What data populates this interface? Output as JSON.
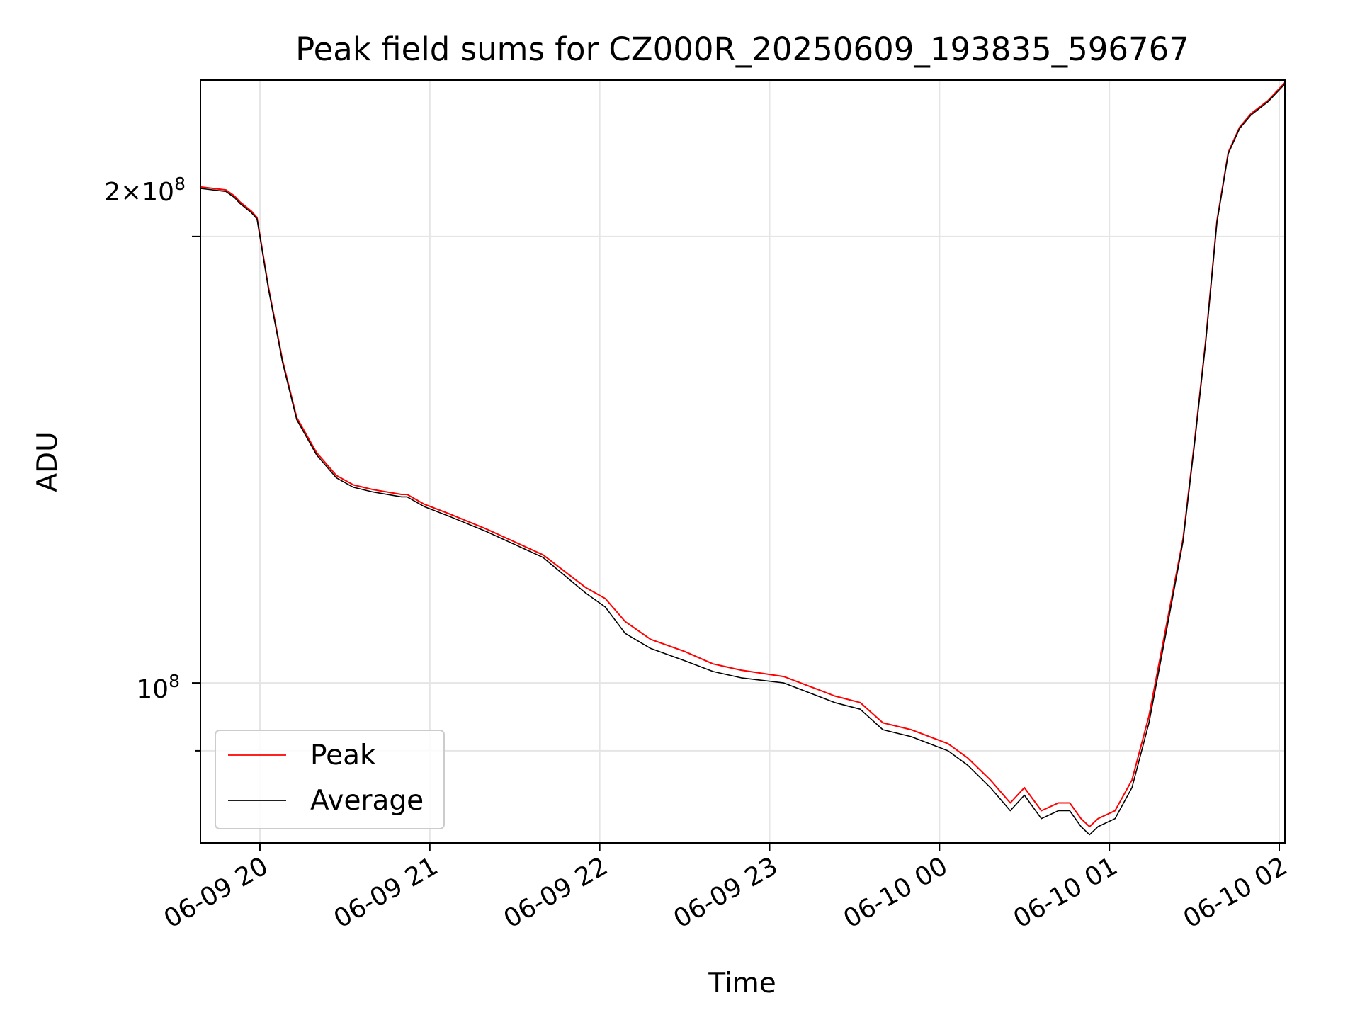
{
  "chart_data": {
    "type": "line",
    "title": "Peak field sums for CZ000R_20250609_193835_596767",
    "xlabel": "Time",
    "ylabel": "ADU",
    "x_ticks": [
      "06-09 20",
      "06-09 21",
      "06-09 22",
      "06-09 23",
      "06-10 00",
      "06-10 01",
      "06-10 02"
    ],
    "y_tick_labels": {
      "major": "10",
      "major_exp": "8",
      "two": "2×10",
      "two_exp": "8"
    },
    "y_scale": "log",
    "ylim": [
      78000000,
      255000000
    ],
    "xlim": [
      "2025-06-09 19:39",
      "2025-06-10 02:02"
    ],
    "grid": true,
    "legend_position": "lower-left",
    "colors": {
      "Peak": "#ff0000",
      "Average": "#000000"
    },
    "series": [
      {
        "name": "Peak",
        "x": [
          "2025-06-09 19:39",
          "2025-06-09 19:48",
          "2025-06-09 19:51",
          "2025-06-09 19:53",
          "2025-06-09 19:57",
          "2025-06-09 19:59",
          "2025-06-09 20:03",
          "2025-06-09 20:08",
          "2025-06-09 20:13",
          "2025-06-09 20:20",
          "2025-06-09 20:27",
          "2025-06-09 20:33",
          "2025-06-09 20:40",
          "2025-06-09 20:50",
          "2025-06-09 20:52",
          "2025-06-09 20:58",
          "2025-06-09 21:07",
          "2025-06-09 21:20",
          "2025-06-09 21:40",
          "2025-06-09 21:55",
          "2025-06-09 22:02",
          "2025-06-09 22:09",
          "2025-06-09 22:18",
          "2025-06-09 22:30",
          "2025-06-09 22:40",
          "2025-06-09 22:50",
          "2025-06-09 23:05",
          "2025-06-09 23:17",
          "2025-06-09 23:23",
          "2025-06-09 23:32",
          "2025-06-09 23:40",
          "2025-06-09 23:50",
          "2025-06-10 00:03",
          "2025-06-10 00:10",
          "2025-06-10 00:18",
          "2025-06-10 00:25",
          "2025-06-10 00:30",
          "2025-06-10 00:36",
          "2025-06-10 00:42",
          "2025-06-10 00:46",
          "2025-06-10 00:50",
          "2025-06-10 00:53",
          "2025-06-10 00:56",
          "2025-06-10 01:02",
          "2025-06-10 01:08",
          "2025-06-10 01:14",
          "2025-06-10 01:20",
          "2025-06-10 01:26",
          "2025-06-10 01:30",
          "2025-06-10 01:34",
          "2025-06-10 01:38",
          "2025-06-10 01:42",
          "2025-06-10 01:46",
          "2025-06-10 01:50",
          "2025-06-10 01:56",
          "2025-06-10 02:02"
        ],
        "y": [
          216000000,
          215000000,
          213000000,
          211000000,
          208000000,
          206000000,
          185000000,
          165000000,
          151000000,
          143000000,
          138000000,
          136000000,
          135000000,
          134000000,
          134000000,
          132000000,
          130000000,
          127000000,
          122000000,
          116000000,
          114000000,
          110000000,
          107000000,
          105000000,
          103000000,
          102000000,
          101000000,
          99000000,
          98000000,
          97000000,
          94000000,
          93000000,
          91000000,
          89000000,
          86000000,
          83000000,
          85000000,
          82000000,
          83000000,
          83000000,
          81000000,
          80000000,
          81000000,
          82000000,
          86000000,
          95000000,
          109000000,
          125000000,
          145000000,
          170000000,
          205000000,
          228000000,
          237000000,
          242000000,
          247000000,
          254000000
        ]
      },
      {
        "name": "Average",
        "x": [
          "2025-06-09 19:39",
          "2025-06-09 19:48",
          "2025-06-09 19:51",
          "2025-06-09 19:53",
          "2025-06-09 19:57",
          "2025-06-09 19:59",
          "2025-06-09 20:03",
          "2025-06-09 20:08",
          "2025-06-09 20:13",
          "2025-06-09 20:20",
          "2025-06-09 20:27",
          "2025-06-09 20:33",
          "2025-06-09 20:40",
          "2025-06-09 20:50",
          "2025-06-09 20:52",
          "2025-06-09 20:58",
          "2025-06-09 21:07",
          "2025-06-09 21:20",
          "2025-06-09 21:40",
          "2025-06-09 21:55",
          "2025-06-09 22:02",
          "2025-06-09 22:09",
          "2025-06-09 22:18",
          "2025-06-09 22:30",
          "2025-06-09 22:40",
          "2025-06-09 22:50",
          "2025-06-09 23:05",
          "2025-06-09 23:17",
          "2025-06-09 23:23",
          "2025-06-09 23:32",
          "2025-06-09 23:40",
          "2025-06-09 23:50",
          "2025-06-10 00:03",
          "2025-06-10 00:10",
          "2025-06-10 00:18",
          "2025-06-10 00:25",
          "2025-06-10 00:30",
          "2025-06-10 00:36",
          "2025-06-10 00:42",
          "2025-06-10 00:46",
          "2025-06-10 00:50",
          "2025-06-10 00:53",
          "2025-06-10 00:56",
          "2025-06-10 01:02",
          "2025-06-10 01:08",
          "2025-06-10 01:14",
          "2025-06-10 01:20",
          "2025-06-10 01:26",
          "2025-06-10 01:30",
          "2025-06-10 01:34",
          "2025-06-10 01:38",
          "2025-06-10 01:42",
          "2025-06-10 01:46",
          "2025-06-10 01:50",
          "2025-06-10 01:56",
          "2025-06-10 02:02"
        ],
        "y": [
          215500000,
          214500000,
          212500000,
          210500000,
          207500000,
          205500000,
          184500000,
          164500000,
          150500000,
          142500000,
          137500000,
          135500000,
          134500000,
          133500000,
          133500000,
          131500000,
          129500000,
          126500000,
          121500000,
          115000000,
          112500000,
          108000000,
          105500000,
          103500000,
          101800000,
          100800000,
          100000000,
          98000000,
          97000000,
          96000000,
          93000000,
          92000000,
          90000000,
          88000000,
          85000000,
          82000000,
          84000000,
          81000000,
          82000000,
          82000000,
          80000000,
          79000000,
          80000000,
          81000000,
          85000000,
          94000000,
          108000000,
          124500000,
          144500000,
          169500000,
          204500000,
          227500000,
          236500000,
          241500000,
          246500000,
          253500000
        ]
      }
    ]
  }
}
